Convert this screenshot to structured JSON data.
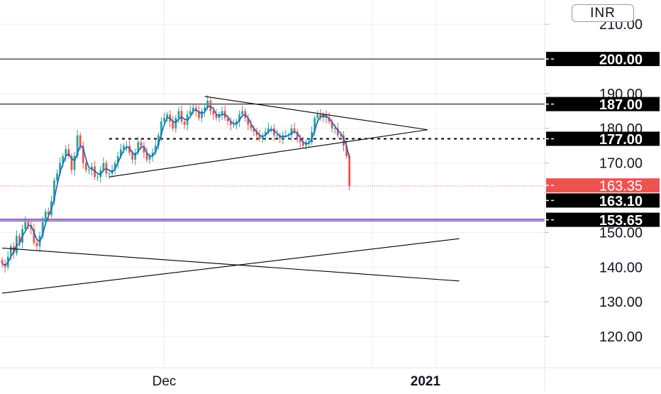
{
  "currency_label": "INR",
  "chart_data": {
    "type": "candlestick",
    "title": "",
    "xlabel": "",
    "ylabel": "",
    "ylim": [
      111,
      217
    ],
    "y_ticks": [
      {
        "value": 120,
        "label": "120.00"
      },
      {
        "value": 130,
        "label": "130.00"
      },
      {
        "value": 140,
        "label": "140.00"
      },
      {
        "value": 150,
        "label": "150.00"
      },
      {
        "value": 170,
        "label": "170.00"
      },
      {
        "value": 180,
        "label": "180.00"
      },
      {
        "value": 190,
        "label": "190.00"
      },
      {
        "value": 210,
        "label": "210.00"
      }
    ],
    "x_ticks": [
      {
        "bar": 56,
        "label": "Dec"
      },
      {
        "bar": 150,
        "label": "2021"
      }
    ],
    "price_tags": [
      {
        "value": 200.0,
        "label": "200.00",
        "style": "level"
      },
      {
        "value": 187.0,
        "label": "187.00",
        "style": "level"
      },
      {
        "value": 177.0,
        "label": "177.00",
        "style": "level"
      },
      {
        "value": 163.35,
        "label": "163.35",
        "style": "last"
      },
      {
        "value": 163.1,
        "label": "163.10",
        "style": "level"
      },
      {
        "value": 153.65,
        "label": "153.65",
        "style": "level"
      }
    ],
    "horizontal_levels": [
      {
        "value": 200.0,
        "style": "solid",
        "color": "#000000"
      },
      {
        "value": 187.0,
        "style": "solid",
        "color": "#000000"
      },
      {
        "value": 177.0,
        "style": "dotted",
        "color": "#000000"
      },
      {
        "value": 163.35,
        "style": "last-price",
        "color": "#ef5350"
      },
      {
        "value": 153.8,
        "style": "band",
        "color": "#9c27b0"
      },
      {
        "value": 153.3,
        "style": "band",
        "color": "#7e57c2"
      }
    ],
    "trendlines": [
      {
        "from": {
          "bar": 70,
          "value": 189.2
        },
        "to": {
          "bar": 147,
          "value": 179.6
        }
      },
      {
        "from": {
          "bar": 37,
          "value": 166.0
        },
        "to": {
          "bar": 147,
          "value": 179.6
        }
      },
      {
        "from": {
          "bar": 0,
          "value": 145.5
        },
        "to": {
          "bar": 158,
          "value": 136.0
        }
      },
      {
        "from": {
          "bar": 0,
          "value": 132.5
        },
        "to": {
          "bar": 158,
          "value": 148.2
        }
      }
    ],
    "colors": {
      "up": "#26a69a",
      "down": "#ef5350",
      "ma": "#1565c0",
      "grid": "#eeeeee"
    },
    "bars_visible": 121,
    "bars_until_right_axis": 158,
    "series": [
      {
        "name": "",
        "close": [
          141,
          140,
          143,
          146,
          144,
          149,
          147,
          151,
          153,
          152,
          151,
          147,
          146,
          149,
          153,
          156,
          155,
          159,
          165,
          167,
          170,
          172,
          174,
          172,
          168,
          172,
          178,
          175,
          170,
          168,
          168,
          169,
          166,
          166,
          168,
          170,
          167,
          167,
          168,
          170,
          172,
          174,
          175,
          175,
          173,
          171,
          173,
          176,
          175,
          173,
          171,
          172,
          173,
          175,
          178,
          182,
          183,
          184,
          182,
          180,
          183,
          185,
          182,
          181,
          184,
          185,
          186,
          185,
          183,
          185,
          186,
          188,
          185,
          184,
          183,
          184,
          185,
          183,
          182,
          181,
          181,
          182,
          184,
          185,
          183,
          181,
          180,
          179,
          178,
          177,
          178,
          179,
          180,
          180,
          178,
          178,
          177,
          178,
          178,
          178,
          180,
          179,
          177,
          176,
          175,
          176,
          176,
          179,
          183,
          184,
          183,
          184,
          183,
          182,
          180,
          180,
          178,
          178,
          175,
          172,
          163.35
        ]
      }
    ]
  }
}
